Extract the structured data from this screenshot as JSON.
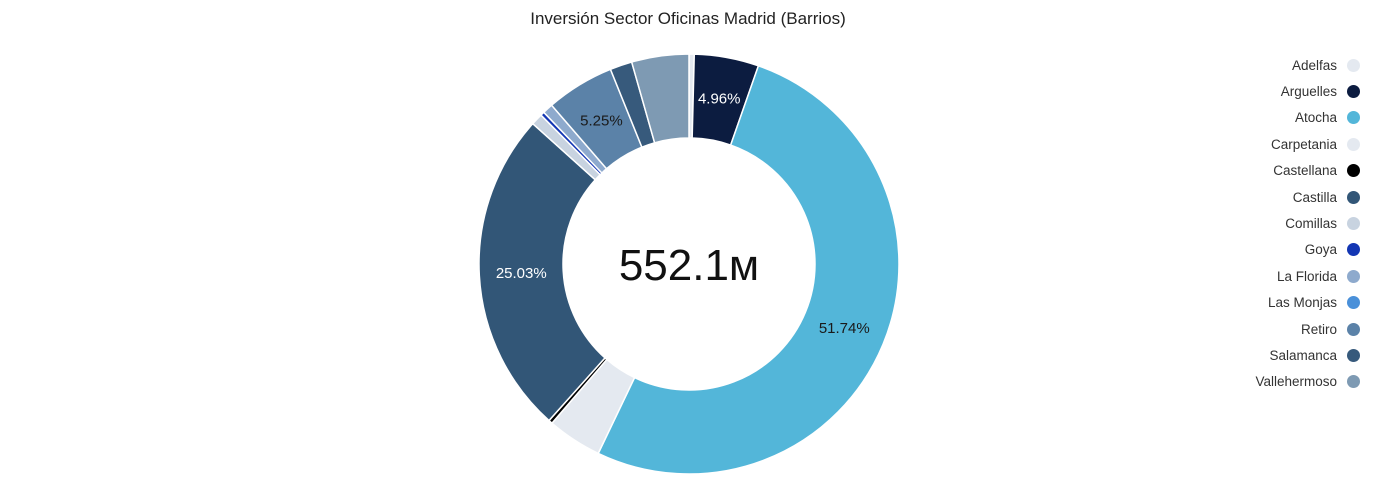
{
  "chart_data": {
    "type": "pie",
    "variant": "donut",
    "title": "Inversión Sector Oficinas Madrid (Barrios)",
    "center_label": "552.1м",
    "legend_position": "right",
    "series": [
      {
        "name": "Adelfas",
        "percent": 0.4,
        "color": "#e4e9f0"
      },
      {
        "name": "Arguelles",
        "percent": 4.96,
        "color": "#0c1c40",
        "label": "4.96%",
        "label_color": "#ffffff"
      },
      {
        "name": "Atocha",
        "percent": 51.74,
        "color": "#53b6d9",
        "label": "51.74%",
        "label_color": "#1a1a1a"
      },
      {
        "name": "Carpetania",
        "percent": 4.2,
        "color": "#e4e9f0"
      },
      {
        "name": "Castellana",
        "percent": 0.3,
        "color": "#000000"
      },
      {
        "name": "Castilla",
        "percent": 25.03,
        "color": "#325677",
        "label": "25.03%",
        "label_color": "#ffffff"
      },
      {
        "name": "Comillas",
        "percent": 0.9,
        "color": "#c8d3e0"
      },
      {
        "name": "Goya",
        "percent": 0.3,
        "color": "#1336b3"
      },
      {
        "name": "La Florida",
        "percent": 0.8,
        "color": "#8eaacd"
      },
      {
        "name": "Las Monjas",
        "percent": 0.0,
        "color": "#4a90d9"
      },
      {
        "name": "Retiro",
        "percent": 5.25,
        "color": "#5b82a8",
        "label": "5.25%",
        "label_color": "#1a1a1a"
      },
      {
        "name": "Salamanca",
        "percent": 1.7,
        "color": "#375a7c"
      },
      {
        "name": "Vallehermoso",
        "percent": 4.4,
        "color": "#7e9ab3"
      }
    ]
  }
}
